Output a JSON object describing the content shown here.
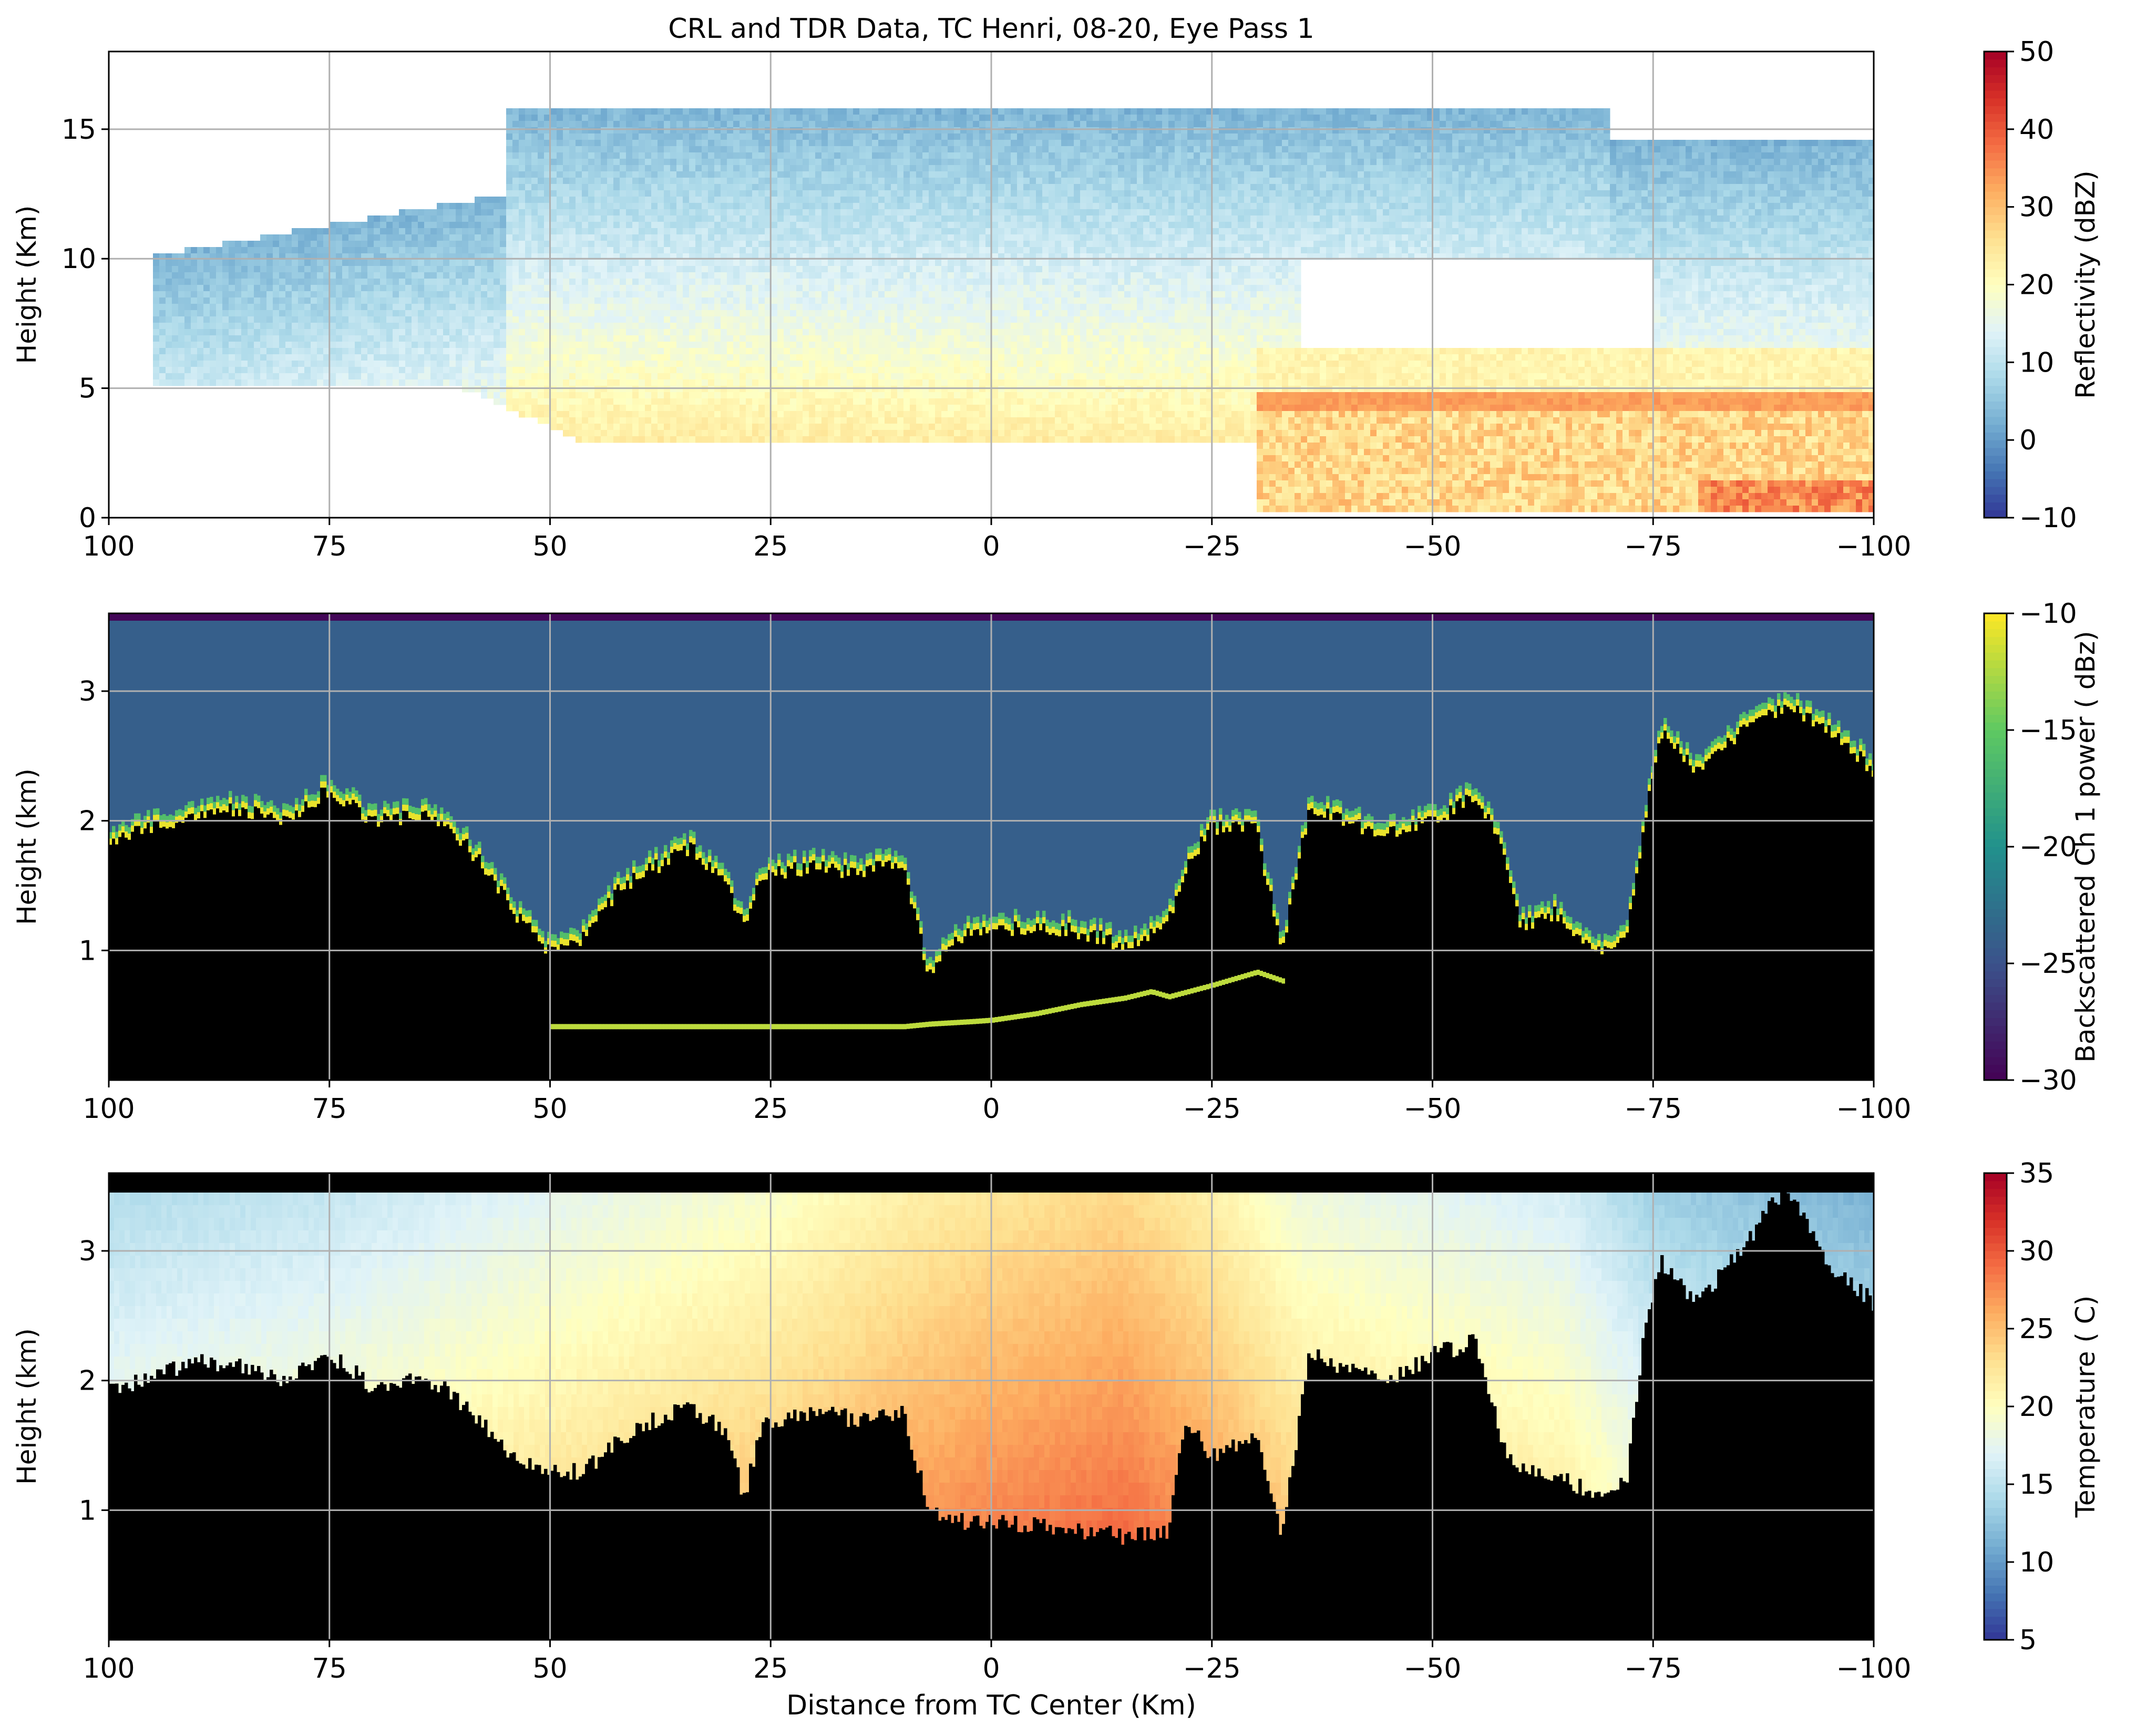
{
  "figure": {
    "title": "CRL and TDR Data, TC Henri, 08-20, Eye Pass 1",
    "xlabel": "Distance from TC Center (Km)"
  },
  "chart_data": [
    {
      "type": "heatmap",
      "title": "",
      "xlabel": "",
      "ylabel": "Height (Km)",
      "xlim": [
        100,
        -100
      ],
      "ylim": [
        0,
        18
      ],
      "xticks": [
        100,
        75,
        50,
        25,
        0,
        -25,
        -50,
        -75,
        -100
      ],
      "yticks": [
        0,
        5,
        10,
        15
      ],
      "grid": true,
      "colormap": "RdYlBu_r",
      "colorbar": {
        "label": "Reflectivity (dBZ)",
        "range": [
          -10,
          50
        ],
        "ticks": [
          -10,
          0,
          10,
          20,
          30,
          40,
          50
        ],
        "colors": [
          "#313695",
          "#4575b4",
          "#74add1",
          "#abd9e9",
          "#e0f3f8",
          "#ffffbf",
          "#fee090",
          "#fdae61",
          "#f46d43",
          "#d73027",
          "#a50026"
        ]
      },
      "features": [
        {
          "kind": "anvil_cloud",
          "x_range": [
            95,
            -100
          ],
          "top_km": 16,
          "base_km": 5,
          "typical_dbz": 5
        },
        {
          "kind": "melting_layer_bright_band",
          "x_range": [
            -30,
            -100
          ],
          "height_km": 4.5,
          "typical_dbz": 32
        },
        {
          "kind": "low_level_rain",
          "x_range": [
            -30,
            -100
          ],
          "height_range_km": [
            0.3,
            4.5
          ],
          "typical_dbz": 28
        },
        {
          "kind": "clear_region",
          "x_range": [
            -35,
            -75
          ],
          "height_range_km": [
            5.5,
            10
          ]
        }
      ]
    },
    {
      "type": "heatmap",
      "title": "",
      "xlabel": "",
      "ylabel": "Height (km)",
      "xlim": [
        100,
        -100
      ],
      "ylim": [
        0,
        3.6
      ],
      "xticks": [
        100,
        75,
        50,
        25,
        0,
        -25,
        -50,
        -75,
        -100
      ],
      "yticks": [
        1,
        2,
        3
      ],
      "grid": true,
      "colormap": "viridis",
      "colorbar": {
        "label": "Backscattered Ch 1 power ( dBz)",
        "range": [
          -30,
          -10
        ],
        "ticks": [
          -30,
          -25,
          -20,
          -15,
          -10
        ],
        "colors": [
          "#440154",
          "#3b528b",
          "#21918c",
          "#5ec962",
          "#fde725"
        ]
      },
      "background_dbz": -24,
      "cloud_top_profile": {
        "x": [
          100,
          95,
          90,
          85,
          80,
          75,
          70,
          65,
          62,
          58,
          54,
          50,
          46,
          42,
          38,
          34,
          30,
          28,
          26,
          20,
          15,
          10,
          7,
          5,
          2,
          0,
          -5,
          -10,
          -15,
          -20,
          -22,
          -25,
          -30,
          -33,
          -36,
          -40,
          -45,
          -50,
          -55,
          -58,
          -60,
          -64,
          -68,
          -72,
          -74,
          -76,
          -80,
          -85,
          -90,
          -95,
          -100
        ],
        "height_km": [
          1.85,
          1.95,
          2.05,
          2.1,
          2.0,
          2.25,
          2.0,
          2.05,
          2.0,
          1.7,
          1.3,
          1.0,
          1.1,
          1.5,
          1.65,
          1.8,
          1.5,
          1.2,
          1.6,
          1.65,
          1.6,
          1.7,
          0.8,
          1.05,
          1.15,
          1.15,
          1.2,
          1.15,
          1.05,
          1.2,
          1.65,
          1.95,
          1.95,
          1.0,
          2.1,
          2.0,
          1.9,
          2.0,
          2.2,
          1.8,
          1.2,
          1.3,
          1.0,
          1.1,
          2.0,
          2.7,
          2.4,
          2.7,
          2.9,
          2.7,
          2.4
        ]
      },
      "sea_surface_profile": {
        "x": [
          50,
          10,
          7,
          2,
          0,
          -5,
          -10,
          -15,
          -18,
          -20,
          -25,
          -30,
          -33
        ],
        "height_km": [
          0.4,
          0.4,
          0.42,
          0.44,
          0.45,
          0.5,
          0.57,
          0.62,
          0.67,
          0.63,
          0.72,
          0.82,
          0.75
        ]
      }
    },
    {
      "type": "heatmap",
      "title": "",
      "xlabel": "Distance from TC Center (Km)",
      "ylabel": "Height (km)",
      "xlim": [
        100,
        -100
      ],
      "ylim": [
        0,
        3.6
      ],
      "xticks": [
        100,
        75,
        50,
        25,
        0,
        -25,
        -50,
        -75,
        -100
      ],
      "yticks": [
        1,
        2,
        3
      ],
      "grid": true,
      "colormap": "RdYlBu_r",
      "colorbar": {
        "label": "Temperature ( C)",
        "range": [
          5,
          35
        ],
        "ticks": [
          5,
          10,
          15,
          20,
          25,
          30,
          35
        ],
        "colors": [
          "#313695",
          "#4575b4",
          "#74add1",
          "#abd9e9",
          "#e0f3f8",
          "#ffffbf",
          "#fee090",
          "#fdae61",
          "#f46d43",
          "#d73027",
          "#a50026"
        ]
      },
      "data_top_km": 3.45,
      "temperature_by_x": {
        "x": [
          100,
          75,
          50,
          25,
          10,
          0,
          -15,
          -25,
          -35,
          -50,
          -65,
          -75,
          -100
        ],
        "temperature_c": [
          18,
          19,
          21,
          23,
          25,
          26,
          27,
          25,
          22,
          21,
          20,
          17,
          15
        ]
      },
      "blocked_region_profile": {
        "x": [
          100,
          95,
          90,
          85,
          80,
          75,
          70,
          65,
          62,
          58,
          54,
          50,
          46,
          42,
          38,
          34,
          30,
          28,
          26,
          20,
          15,
          10,
          7,
          5,
          2,
          0,
          -5,
          -10,
          -15,
          -20,
          -22,
          -25,
          -30,
          -33,
          -36,
          -40,
          -45,
          -50,
          -55,
          -58,
          -60,
          -64,
          -68,
          -72,
          -74,
          -76,
          -80,
          -85,
          -90,
          -95,
          -100
        ],
        "height_km": [
          1.9,
          2.05,
          2.15,
          2.1,
          2.0,
          2.2,
          1.95,
          2.0,
          1.95,
          1.7,
          1.4,
          1.3,
          1.3,
          1.55,
          1.7,
          1.8,
          1.6,
          1.1,
          1.65,
          1.75,
          1.7,
          1.75,
          1.0,
          0.95,
          0.9,
          0.9,
          0.88,
          0.85,
          0.8,
          0.85,
          1.7,
          1.4,
          1.6,
          0.8,
          2.2,
          2.1,
          2.0,
          2.2,
          2.3,
          1.5,
          1.3,
          1.25,
          1.15,
          1.2,
          2.4,
          2.9,
          2.6,
          3.0,
          3.5,
          2.9,
          2.6
        ]
      }
    }
  ]
}
